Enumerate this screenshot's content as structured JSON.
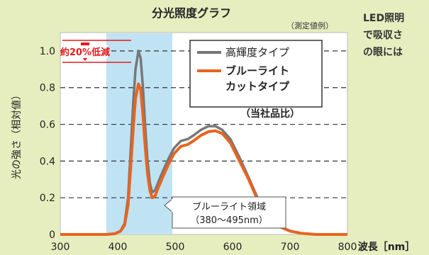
{
  "chart_data": {
    "type": "line",
    "title": "分光照度グラフ",
    "subtitle": "（測定値例）",
    "ylabel": "光の強さ（相対値）",
    "xlabel": "波長［nm］",
    "xlim": [
      300,
      800
    ],
    "ylim": [
      0,
      1.1
    ],
    "xticks": [
      "300",
      "400",
      "500",
      "600",
      "700",
      "800"
    ],
    "yticks": [
      "0",
      "0.2",
      "0.4",
      "0.6",
      "0.8",
      "1.0"
    ],
    "grid": "horizontal dashed",
    "legend_position": "top-right",
    "legend_note": "（当社品比）",
    "annotation": "約20%低減",
    "region_label": [
      "ブルーライト領域",
      "（380〜495nm）"
    ],
    "region_range": [
      380,
      495
    ],
    "series": [
      {
        "name": "高輝度タイプ",
        "color": "#777777",
        "points": [
          [
            300,
            0
          ],
          [
            380,
            0
          ],
          [
            395,
            0.004
          ],
          [
            405,
            0.02
          ],
          [
            412,
            0.06
          ],
          [
            418,
            0.2
          ],
          [
            423,
            0.48
          ],
          [
            427,
            0.72
          ],
          [
            431,
            0.9
          ],
          [
            436,
            1.0
          ],
          [
            440,
            0.96
          ],
          [
            444,
            0.8
          ],
          [
            448,
            0.58
          ],
          [
            452,
            0.4
          ],
          [
            456,
            0.28
          ],
          [
            460,
            0.23
          ],
          [
            465,
            0.24
          ],
          [
            470,
            0.28
          ],
          [
            478,
            0.34
          ],
          [
            488,
            0.41
          ],
          [
            498,
            0.47
          ],
          [
            510,
            0.51
          ],
          [
            522,
            0.52
          ],
          [
            532,
            0.54
          ],
          [
            545,
            0.57
          ],
          [
            558,
            0.59
          ],
          [
            570,
            0.59
          ],
          [
            582,
            0.57
          ],
          [
            596,
            0.52
          ],
          [
            612,
            0.42
          ],
          [
            628,
            0.31
          ],
          [
            642,
            0.21
          ],
          [
            656,
            0.13
          ],
          [
            670,
            0.075
          ],
          [
            685,
            0.04
          ],
          [
            700,
            0.02
          ],
          [
            720,
            0.006
          ],
          [
            745,
            0
          ],
          [
            800,
            0
          ]
        ]
      },
      {
        "name": "ブルーライトカットタイプ",
        "color": "#e86420",
        "points": [
          [
            300,
            0
          ],
          [
            380,
            0
          ],
          [
            395,
            0.004
          ],
          [
            405,
            0.018
          ],
          [
            412,
            0.05
          ],
          [
            418,
            0.16
          ],
          [
            423,
            0.38
          ],
          [
            427,
            0.58
          ],
          [
            431,
            0.74
          ],
          [
            436,
            0.82
          ],
          [
            440,
            0.79
          ],
          [
            444,
            0.65
          ],
          [
            448,
            0.47
          ],
          [
            452,
            0.33
          ],
          [
            456,
            0.24
          ],
          [
            460,
            0.2
          ],
          [
            465,
            0.21
          ],
          [
            470,
            0.25
          ],
          [
            478,
            0.31
          ],
          [
            488,
            0.38
          ],
          [
            498,
            0.44
          ],
          [
            510,
            0.48
          ],
          [
            522,
            0.49
          ],
          [
            532,
            0.51
          ],
          [
            545,
            0.54
          ],
          [
            558,
            0.56
          ],
          [
            570,
            0.565
          ],
          [
            582,
            0.55
          ],
          [
            596,
            0.5
          ],
          [
            612,
            0.4
          ],
          [
            628,
            0.3
          ],
          [
            642,
            0.2
          ],
          [
            656,
            0.125
          ],
          [
            670,
            0.07
          ],
          [
            685,
            0.038
          ],
          [
            700,
            0.018
          ],
          [
            720,
            0.006
          ],
          [
            745,
            0
          ],
          [
            800,
            0
          ]
        ]
      }
    ]
  },
  "side_note": [
    "LED照明",
    "で吸収さ",
    "の眼には"
  ]
}
